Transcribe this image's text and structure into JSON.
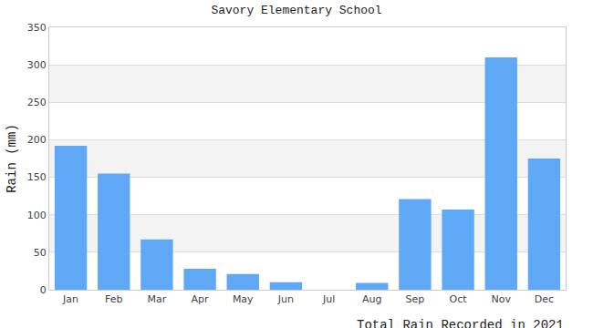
{
  "chart_data": {
    "type": "bar",
    "title": "Savory Elementary School",
    "x_label": "Total Rain Recorded in 2021",
    "y_label": "Rain (mm)",
    "categories": [
      "Jan",
      "Feb",
      "Mar",
      "Apr",
      "May",
      "Jun",
      "Jul",
      "Aug",
      "Sep",
      "Oct",
      "Nov",
      "Dec"
    ],
    "values": [
      192,
      155,
      67,
      28,
      21,
      10,
      0,
      9,
      121,
      107,
      310,
      175
    ],
    "color": "#5fa8f5",
    "ylim": [
      0,
      350
    ],
    "yticks": [
      0,
      50,
      100,
      150,
      200,
      250,
      300,
      350
    ],
    "grid": true
  }
}
